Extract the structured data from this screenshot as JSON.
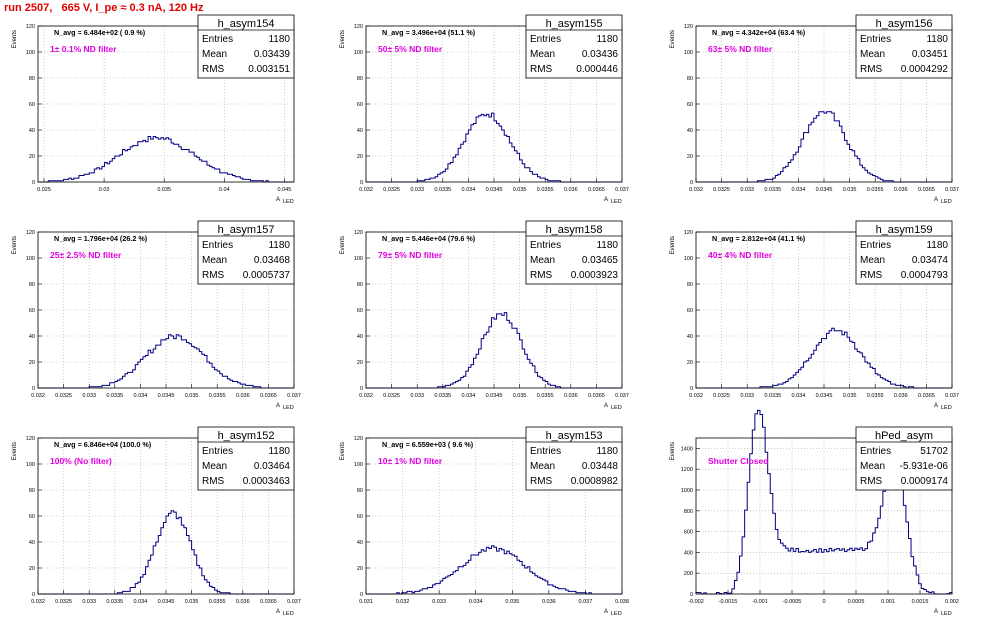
{
  "header": {
    "title": "run 2507,   665 V, I_pe ≈ 0.3 nA, 120 Hz"
  },
  "stat_labels": {
    "entries": "Entries",
    "mean": "Mean",
    "rms": "RMS"
  },
  "colors": {
    "hist": "#000080",
    "magenta": "#e000e0",
    "title_red": "#e00000"
  },
  "chart_data": [
    {
      "type": "histogram",
      "name": "h_asym154",
      "n_avg": "N_avg = 6.484e+02 ( 0.9 %)",
      "filter": "1± 0.1% ND filter",
      "ylabel": "Events",
      "xlabel": "A",
      "xlabel_sub": "LED",
      "xlim": [
        0.0245,
        0.0458
      ],
      "ylim": [
        0,
        120
      ],
      "xticks": [
        0.025,
        0.03,
        0.035,
        0.04,
        0.045
      ],
      "xticklabels": [
        "0.025",
        "0.03",
        "0.035",
        "0.04",
        "0.045"
      ],
      "yticks": [
        0,
        20,
        40,
        60,
        80,
        100,
        120
      ],
      "entries": "1180",
      "mean": "0.03439",
      "rms": "0.003151",
      "hmean": 0.03439,
      "hrms": 0.003151,
      "npeak": 40
    },
    {
      "type": "histogram",
      "name": "h_asym155",
      "n_avg": "N_avg = 3.496e+04 (51.1 %)",
      "filter": "50± 5% ND filter",
      "ylabel": "Events",
      "xlabel": "A",
      "xlabel_sub": "LED",
      "xlim": [
        0.032,
        0.037
      ],
      "ylim": [
        0,
        120
      ],
      "xticks": [
        0.032,
        0.0325,
        0.033,
        0.0335,
        0.034,
        0.0345,
        0.035,
        0.0355,
        0.036,
        0.0365,
        0.037
      ],
      "xticklabels": [
        "0.032",
        "0.0325",
        "0.033",
        "0.0335",
        "0.034",
        "0.0345",
        "0.035",
        "0.0355",
        "0.036",
        "0.0365",
        "0.037"
      ],
      "yticks": [
        0,
        20,
        40,
        60,
        80,
        100,
        120
      ],
      "entries": "1180",
      "mean": "0.03436",
      "rms": "0.000446",
      "hmean": 0.03436,
      "hrms": 0.000446,
      "npeak": 62
    },
    {
      "type": "histogram",
      "name": "h_asym156",
      "n_avg": "N_avg = 4.342e+04 (63.4 %)",
      "filter": "63± 5% ND filter",
      "ylabel": "Events",
      "xlabel": "A",
      "xlabel_sub": "LED",
      "xlim": [
        0.032,
        0.037
      ],
      "ylim": [
        0,
        120
      ],
      "xticks": [
        0.032,
        0.0325,
        0.033,
        0.0335,
        0.034,
        0.0345,
        0.035,
        0.0355,
        0.036,
        0.0365,
        0.037
      ],
      "xticklabels": [
        "0.032",
        "0.0325",
        "0.033",
        "0.0335",
        "0.034",
        "0.0345",
        "0.035",
        "0.0355",
        "0.036",
        "0.0365",
        "0.037"
      ],
      "yticks": [
        0,
        20,
        40,
        60,
        80,
        100,
        120
      ],
      "entries": "1180",
      "mean": "0.03451",
      "rms": "0.0004292",
      "hmean": 0.03451,
      "hrms": 0.0004292,
      "npeak": 64
    },
    {
      "type": "histogram",
      "name": "h_asym157",
      "n_avg": "N_avg = 1.796e+04 (26.2 %)",
      "filter": "25± 2.5% ND filter",
      "ylabel": "Events",
      "xlabel": "A",
      "xlabel_sub": "LED",
      "xlim": [
        0.032,
        0.037
      ],
      "ylim": [
        0,
        120
      ],
      "xticks": [
        0.032,
        0.0325,
        0.033,
        0.0335,
        0.034,
        0.0345,
        0.035,
        0.0355,
        0.036,
        0.0365,
        0.037
      ],
      "xticklabels": [
        "0.032",
        "0.0325",
        "0.033",
        "0.0335",
        "0.034",
        "0.0345",
        "0.035",
        "0.0355",
        "0.036",
        "0.0365",
        "0.037"
      ],
      "yticks": [
        0,
        20,
        40,
        60,
        80,
        100,
        120
      ],
      "entries": "1180",
      "mean": "0.03468",
      "rms": "0.0005737",
      "hmean": 0.03468,
      "hrms": 0.0005737,
      "npeak": 47
    },
    {
      "type": "histogram",
      "name": "h_asym158",
      "n_avg": "N_avg = 5.446e+04 (79.6 %)",
      "filter": "79± 5% ND filter",
      "ylabel": "Events",
      "xlabel": "A",
      "xlabel_sub": "LED",
      "xlim": [
        0.032,
        0.037
      ],
      "ylim": [
        0,
        120
      ],
      "xticks": [
        0.032,
        0.0325,
        0.033,
        0.0335,
        0.034,
        0.0345,
        0.035,
        0.0355,
        0.036,
        0.0365,
        0.037
      ],
      "xticklabels": [
        "0.032",
        "0.0325",
        "0.033",
        "0.0335",
        "0.034",
        "0.0345",
        "0.035",
        "0.0355",
        "0.036",
        "0.0365",
        "0.037"
      ],
      "yticks": [
        0,
        20,
        40,
        60,
        80,
        100,
        120
      ],
      "entries": "1180",
      "mean": "0.03465",
      "rms": "0.0003923",
      "hmean": 0.03465,
      "hrms": 0.0003923,
      "npeak": 67
    },
    {
      "type": "histogram",
      "name": "h_asym159",
      "n_avg": "N_avg = 2.812e+04 (41.1 %)",
      "filter": "40± 4% ND filter",
      "ylabel": "Events",
      "xlabel": "A",
      "xlabel_sub": "LED",
      "xlim": [
        0.032,
        0.037
      ],
      "ylim": [
        0,
        120
      ],
      "xticks": [
        0.032,
        0.0325,
        0.033,
        0.0335,
        0.034,
        0.0345,
        0.035,
        0.0355,
        0.036,
        0.0365,
        0.037
      ],
      "xticklabels": [
        "0.032",
        "0.0325",
        "0.033",
        "0.0335",
        "0.034",
        "0.0345",
        "0.035",
        "0.0355",
        "0.036",
        "0.0365",
        "0.037"
      ],
      "yticks": [
        0,
        20,
        40,
        60,
        80,
        100,
        120
      ],
      "entries": "1180",
      "mean": "0.03474",
      "rms": "0.0004793",
      "hmean": 0.03474,
      "hrms": 0.0004793,
      "npeak": 52
    },
    {
      "type": "histogram",
      "name": "h_asym152",
      "n_avg": "N_avg = 6.846e+04 (100.0 %)",
      "filter": "100% (No filter)",
      "ylabel": "Events",
      "xlabel": "A",
      "xlabel_sub": "LED",
      "xlim": [
        0.032,
        0.037
      ],
      "ylim": [
        0,
        120
      ],
      "xticks": [
        0.032,
        0.0325,
        0.033,
        0.0335,
        0.034,
        0.0345,
        0.035,
        0.0355,
        0.036,
        0.0365,
        0.037
      ],
      "xticklabels": [
        "0.032",
        "0.0325",
        "0.033",
        "0.0335",
        "0.034",
        "0.0345",
        "0.035",
        "0.0355",
        "0.036",
        "0.0365",
        "0.037"
      ],
      "yticks": [
        0,
        20,
        40,
        60,
        80,
        100,
        120
      ],
      "entries": "1180",
      "mean": "0.03464",
      "rms": "0.0003463",
      "hmean": 0.03464,
      "hrms": 0.0003463,
      "npeak": 73
    },
    {
      "type": "histogram",
      "name": "h_asym153",
      "n_avg": "N_avg = 6.559e+03 ( 9.6 %)",
      "filter": "10± 1% ND filter",
      "ylabel": "Events",
      "xlabel": "A",
      "xlabel_sub": "LED",
      "xlim": [
        0.031,
        0.038
      ],
      "ylim": [
        0,
        120
      ],
      "xticks": [
        0.031,
        0.032,
        0.033,
        0.034,
        0.035,
        0.036,
        0.037,
        0.038
      ],
      "xticklabels": [
        "0.031",
        "0.032",
        "0.033",
        "0.034",
        "0.035",
        "0.036",
        "0.037",
        "0.038"
      ],
      "yticks": [
        0,
        20,
        40,
        60,
        80,
        100,
        120
      ],
      "entries": "1180",
      "mean": "0.03448",
      "rms": "0.0008982",
      "hmean": 0.03448,
      "hrms": 0.0008982,
      "npeak": 41
    },
    {
      "type": "histogram",
      "name": "hPed_asym",
      "n_avg": "",
      "filter": "Shutter Closed",
      "ylabel": "Events",
      "xlabel": "A",
      "xlabel_sub": "LED",
      "xlim": [
        -0.002,
        0.002
      ],
      "ylim": [
        0,
        1500
      ],
      "xticks": [
        -0.002,
        -0.0015,
        -0.001,
        -0.0005,
        0,
        0.0005,
        0.001,
        0.0015,
        0.002
      ],
      "xticklabels": [
        "-0.002",
        "-0.0015",
        "-0.001",
        "-0.0005",
        "0",
        "0.0005",
        "0.001",
        "0.0015",
        "0.002"
      ],
      "yticks": [
        0,
        200,
        400,
        600,
        800,
        1000,
        1200,
        1400
      ],
      "entries": "51702",
      "mean": "-5.931e-06",
      "rms": "0.0009174",
      "bimodal": [
        {
          "mu": -0.00103,
          "sigma": 0.00015,
          "amp": 1460
        },
        {
          "mu": 0.00112,
          "sigma": 0.00018,
          "amp": 1010
        }
      ],
      "plateau": 420
    }
  ]
}
